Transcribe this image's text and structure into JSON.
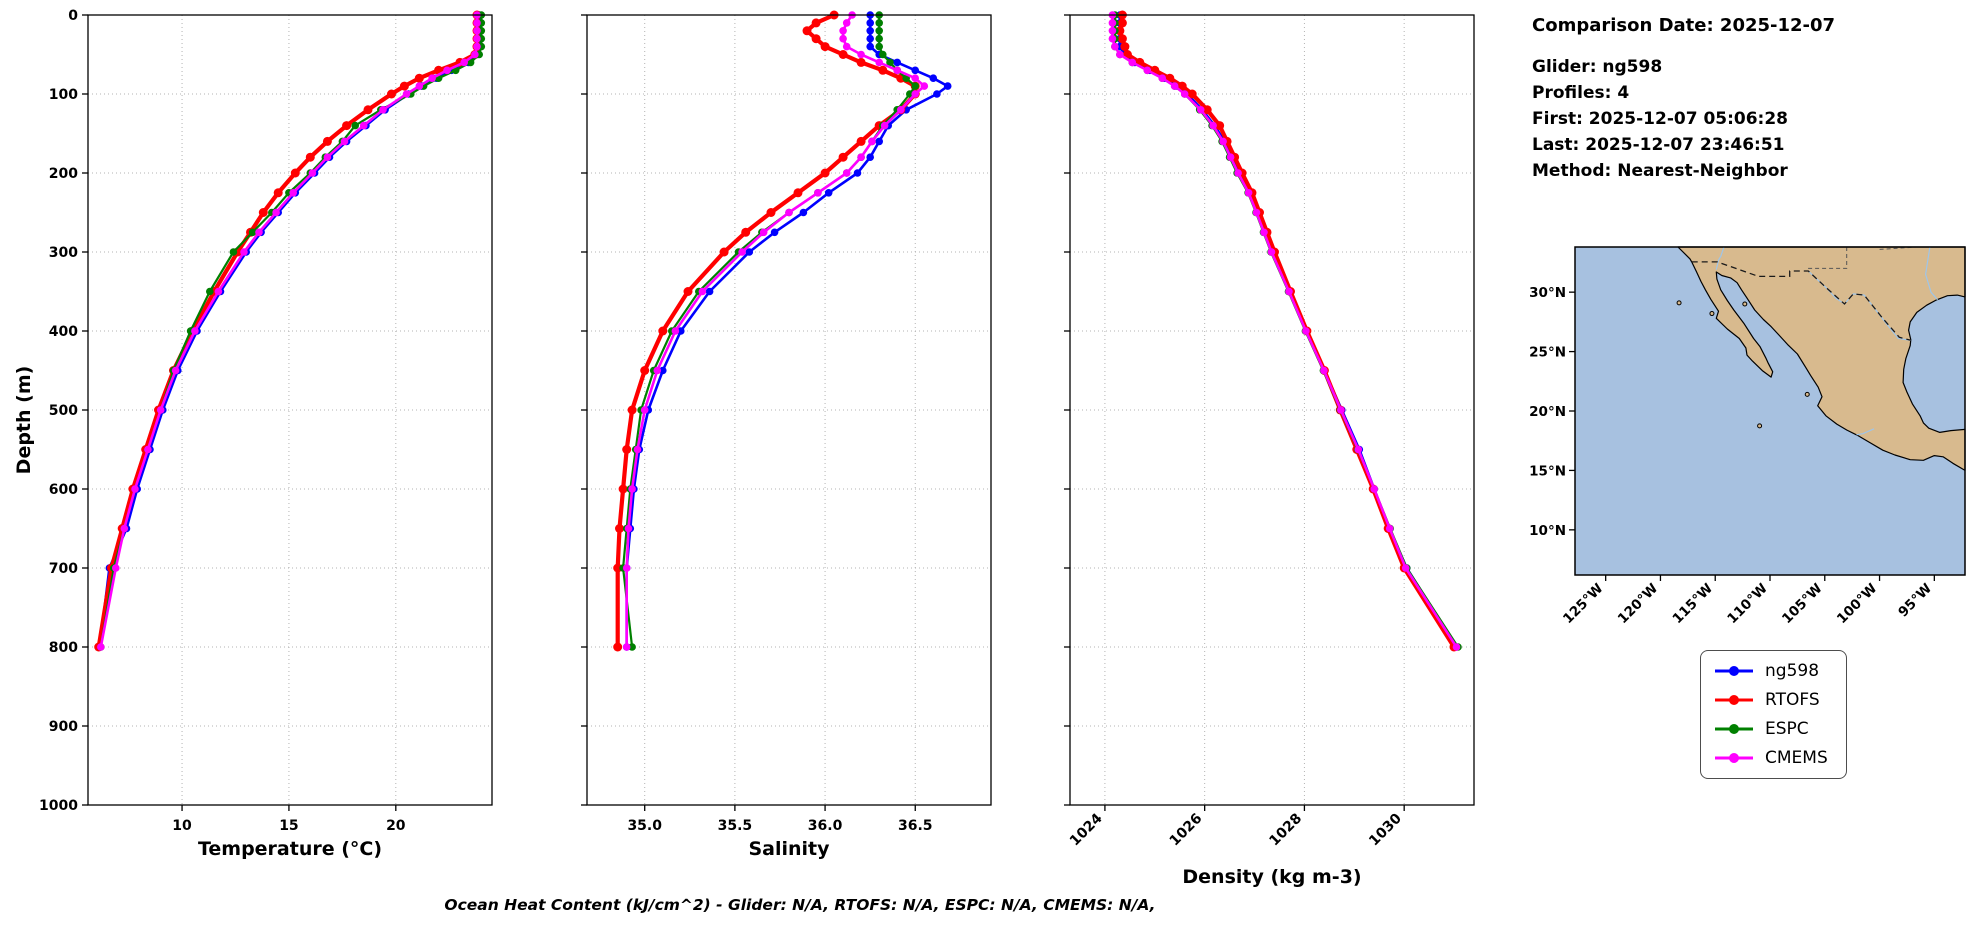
{
  "ylabel": "Depth (m)",
  "caption": "Ocean Heat Content (kJ/cm^2) - Glider: N/A,  RTOFS: N/A,  ESPC: N/A,  CMEMS: N/A,",
  "info_panel": {
    "comparison_date": "Comparison Date: 2025-12-07",
    "lines": [
      "Glider: ng598",
      "Profiles: 4",
      "First: 2025-12-07 05:06:28",
      "Last: 2025-12-07 23:46:51",
      "Method: Nearest-Neighbor"
    ]
  },
  "legend": {
    "items": [
      {
        "label": "ng598",
        "color": "#0000ff"
      },
      {
        "label": "RTOFS",
        "color": "#ff0000"
      },
      {
        "label": "ESPC",
        "color": "#008000"
      },
      {
        "label": "CMEMS",
        "color": "#ff00ff"
      }
    ]
  },
  "map": {
    "ocean_color": "#a7c1e0",
    "land_color": "#d8ba8e",
    "extent": {
      "lon": [
        -127.8,
        -92.2
      ],
      "lat": [
        6.2,
        33.8
      ]
    },
    "lat_ticks": [
      {
        "value": 30,
        "label": "30°N"
      },
      {
        "value": 25,
        "label": "25°N"
      },
      {
        "value": 20,
        "label": "20°N"
      },
      {
        "value": 15,
        "label": "15°N"
      },
      {
        "value": 10,
        "label": "10°N"
      }
    ],
    "lon_ticks": [
      {
        "value": -125,
        "label": "125°W"
      },
      {
        "value": -120,
        "label": "120°W"
      },
      {
        "value": -115,
        "label": "115°W"
      },
      {
        "value": -110,
        "label": "110°W"
      },
      {
        "value": -105,
        "label": "105°W"
      },
      {
        "value": -100,
        "label": "100°W"
      },
      {
        "value": -95,
        "label": "95°W"
      }
    ]
  },
  "chart_data": [
    {
      "id": "temperature",
      "type": "line",
      "xlabel": "Temperature (°C)",
      "ylabel": "Depth (m)",
      "xlim": [
        5.6,
        24.5
      ],
      "ylim": [
        0,
        1000
      ],
      "grid": true,
      "rotate_xticks": false,
      "ytick_labels": true,
      "xticks": [
        {
          "value": 10,
          "label": "10"
        },
        {
          "value": 15,
          "label": "15"
        },
        {
          "value": 20,
          "label": "20"
        }
      ],
      "yticks": [
        {
          "value": 0,
          "label": "0"
        },
        {
          "value": 100,
          "label": "100"
        },
        {
          "value": 200,
          "label": "200"
        },
        {
          "value": 300,
          "label": "300"
        },
        {
          "value": 400,
          "label": "400"
        },
        {
          "value": 500,
          "label": "500"
        },
        {
          "value": 600,
          "label": "600"
        },
        {
          "value": 700,
          "label": "700"
        },
        {
          "value": 800,
          "label": "800"
        },
        {
          "value": 900,
          "label": "900"
        },
        {
          "value": 1000,
          "label": "1000"
        }
      ],
      "depths": [
        0,
        10,
        20,
        30,
        40,
        50,
        60,
        70,
        80,
        90,
        100,
        120,
        140,
        160,
        180,
        200,
        225,
        250,
        275,
        300,
        350,
        400,
        450,
        500,
        550,
        600,
        650,
        700,
        800
      ],
      "series": [
        {
          "name": "ng598",
          "color": "#0000ff",
          "lw": 2.6,
          "ms": 3.8,
          "values": [
            23.9,
            23.9,
            23.9,
            23.9,
            23.9,
            23.8,
            23.4,
            22.6,
            21.9,
            21.2,
            20.6,
            19.5,
            18.6,
            17.7,
            16.9,
            16.2,
            15.3,
            14.5,
            13.7,
            13.0,
            11.8,
            10.7,
            9.8,
            9.1,
            8.5,
            7.9,
            7.4,
            6.6,
            6.15
          ]
        },
        {
          "name": "RTOFS",
          "color": "#ff0000",
          "lw": 4.2,
          "ms": 4.5,
          "values": [
            23.8,
            23.8,
            23.8,
            23.8,
            23.8,
            23.7,
            23.0,
            22.0,
            21.1,
            20.4,
            19.8,
            18.7,
            17.7,
            16.8,
            16.0,
            15.3,
            14.5,
            13.8,
            13.2,
            12.6,
            11.5,
            10.5,
            9.6,
            8.9,
            8.3,
            7.7,
            7.2,
            6.7,
            6.1
          ]
        },
        {
          "name": "ESPC",
          "color": "#008000",
          "lw": 2.2,
          "ms": 3.8,
          "values": [
            24.0,
            24.0,
            24.0,
            24.0,
            24.0,
            23.9,
            23.5,
            22.8,
            22.0,
            21.3,
            20.7,
            19.3,
            18.1,
            17.5,
            16.7,
            16.0,
            15.0,
            14.2,
            13.3,
            12.4,
            11.3,
            10.4,
            9.6,
            9.0,
            8.4,
            7.8,
            7.3,
            6.8,
            6.2
          ]
        },
        {
          "name": "CMEMS",
          "color": "#ff00ff",
          "lw": 2.6,
          "ms": 3.8,
          "values": [
            23.8,
            23.8,
            23.8,
            23.8,
            23.8,
            23.7,
            23.2,
            22.4,
            21.7,
            21.1,
            20.5,
            19.4,
            18.5,
            17.6,
            16.8,
            16.1,
            15.2,
            14.4,
            13.6,
            12.9,
            11.7,
            10.6,
            9.7,
            9.0,
            8.4,
            7.8,
            7.3,
            6.9,
            6.2
          ]
        }
      ]
    },
    {
      "id": "salinity",
      "type": "line",
      "xlabel": "Salinity",
      "ylabel": "Depth (m)",
      "xlim": [
        34.68,
        36.92
      ],
      "ylim": [
        0,
        1000
      ],
      "grid": true,
      "rotate_xticks": false,
      "ytick_labels": false,
      "xticks": [
        {
          "value": 35.0,
          "label": "35.0"
        },
        {
          "value": 35.5,
          "label": "35.5"
        },
        {
          "value": 36.0,
          "label": "36.0"
        },
        {
          "value": 36.5,
          "label": "36.5"
        }
      ],
      "yticks": [
        {
          "value": 0,
          "label": ""
        },
        {
          "value": 100,
          "label": ""
        },
        {
          "value": 200,
          "label": ""
        },
        {
          "value": 300,
          "label": ""
        },
        {
          "value": 400,
          "label": ""
        },
        {
          "value": 500,
          "label": ""
        },
        {
          "value": 600,
          "label": ""
        },
        {
          "value": 700,
          "label": ""
        },
        {
          "value": 800,
          "label": ""
        },
        {
          "value": 900,
          "label": ""
        },
        {
          "value": 1000,
          "label": ""
        }
      ],
      "depths": [
        0,
        10,
        20,
        30,
        40,
        50,
        60,
        70,
        80,
        90,
        100,
        120,
        140,
        160,
        180,
        200,
        225,
        250,
        275,
        300,
        350,
        400,
        450,
        500,
        550,
        600,
        650,
        700,
        800
      ],
      "series": [
        {
          "name": "ng598",
          "color": "#0000ff",
          "lw": 2.6,
          "ms": 3.8,
          "values": [
            36.25,
            36.25,
            36.25,
            36.25,
            36.25,
            36.3,
            36.4,
            36.5,
            36.6,
            36.68,
            36.62,
            36.45,
            36.35,
            36.3,
            36.25,
            36.18,
            36.02,
            35.88,
            35.72,
            35.58,
            35.36,
            35.2,
            35.1,
            35.02,
            34.97,
            34.94,
            34.92,
            34.9,
            34.9
          ]
        },
        {
          "name": "RTOFS",
          "color": "#ff0000",
          "lw": 4.2,
          "ms": 4.5,
          "values": [
            36.05,
            35.95,
            35.9,
            35.95,
            36.0,
            36.1,
            36.2,
            36.32,
            36.42,
            36.5,
            36.5,
            36.42,
            36.3,
            36.2,
            36.1,
            36.0,
            35.85,
            35.7,
            35.56,
            35.44,
            35.24,
            35.1,
            35.0,
            34.93,
            34.9,
            34.88,
            34.86,
            34.85,
            34.85
          ]
        },
        {
          "name": "ESPC",
          "color": "#008000",
          "lw": 2.2,
          "ms": 3.8,
          "values": [
            36.3,
            36.3,
            36.3,
            36.3,
            36.3,
            36.32,
            36.36,
            36.4,
            36.45,
            36.5,
            36.47,
            36.4,
            36.32,
            36.26,
            36.2,
            36.12,
            35.96,
            35.8,
            35.65,
            35.52,
            35.3,
            35.15,
            35.05,
            34.98,
            34.95,
            34.92,
            34.9,
            34.88,
            34.93
          ]
        },
        {
          "name": "CMEMS",
          "color": "#ff00ff",
          "lw": 2.6,
          "ms": 3.8,
          "values": [
            36.15,
            36.12,
            36.1,
            36.1,
            36.12,
            36.2,
            36.3,
            36.4,
            36.5,
            36.55,
            36.5,
            36.42,
            36.33,
            36.26,
            36.2,
            36.12,
            35.96,
            35.8,
            35.66,
            35.54,
            35.32,
            35.17,
            35.07,
            35.0,
            34.96,
            34.93,
            34.91,
            34.9,
            34.9
          ]
        }
      ]
    },
    {
      "id": "density",
      "type": "line",
      "xlabel": "Density (kg m-3)",
      "ylabel": "Depth (m)",
      "xlim": [
        1023.3,
        1031.4
      ],
      "ylim": [
        0,
        1000
      ],
      "grid": true,
      "rotate_xticks": true,
      "ytick_labels": false,
      "xticks": [
        {
          "value": 1024,
          "label": "1024"
        },
        {
          "value": 1026,
          "label": "1026"
        },
        {
          "value": 1028,
          "label": "1028"
        },
        {
          "value": 1030,
          "label": "1030"
        }
      ],
      "yticks": [
        {
          "value": 0,
          "label": ""
        },
        {
          "value": 100,
          "label": ""
        },
        {
          "value": 200,
          "label": ""
        },
        {
          "value": 300,
          "label": ""
        },
        {
          "value": 400,
          "label": ""
        },
        {
          "value": 500,
          "label": ""
        },
        {
          "value": 600,
          "label": ""
        },
        {
          "value": 700,
          "label": ""
        },
        {
          "value": 800,
          "label": ""
        },
        {
          "value": 900,
          "label": ""
        },
        {
          "value": 1000,
          "label": ""
        }
      ],
      "depths": [
        0,
        10,
        20,
        30,
        40,
        50,
        60,
        70,
        80,
        90,
        100,
        120,
        140,
        160,
        180,
        200,
        225,
        250,
        275,
        300,
        350,
        400,
        450,
        500,
        550,
        600,
        650,
        700,
        800
      ],
      "series": [
        {
          "name": "ng598",
          "color": "#0000ff",
          "lw": 2.6,
          "ms": 3.8,
          "values": [
            1024.3,
            1024.3,
            1024.3,
            1024.3,
            1024.3,
            1024.4,
            1024.6,
            1024.9,
            1025.2,
            1025.45,
            1025.65,
            1025.95,
            1026.2,
            1026.4,
            1026.55,
            1026.7,
            1026.9,
            1027.05,
            1027.2,
            1027.35,
            1027.7,
            1028.05,
            1028.4,
            1028.75,
            1029.1,
            1029.4,
            1029.7,
            1030.05,
            1031.05
          ]
        },
        {
          "name": "RTOFS",
          "color": "#ff0000",
          "lw": 4.2,
          "ms": 4.5,
          "values": [
            1024.35,
            1024.35,
            1024.3,
            1024.35,
            1024.4,
            1024.45,
            1024.7,
            1025.0,
            1025.3,
            1025.55,
            1025.75,
            1026.05,
            1026.3,
            1026.45,
            1026.6,
            1026.75,
            1026.95,
            1027.1,
            1027.25,
            1027.4,
            1027.72,
            1028.05,
            1028.4,
            1028.72,
            1029.05,
            1029.38,
            1029.68,
            1030.0,
            1031.0
          ]
        },
        {
          "name": "ESPC",
          "color": "#008000",
          "lw": 2.2,
          "ms": 3.8,
          "values": [
            1024.2,
            1024.2,
            1024.2,
            1024.2,
            1024.2,
            1024.3,
            1024.55,
            1024.85,
            1025.15,
            1025.4,
            1025.6,
            1025.9,
            1026.15,
            1026.35,
            1026.5,
            1026.65,
            1026.87,
            1027.03,
            1027.18,
            1027.33,
            1027.68,
            1028.02,
            1028.38,
            1028.72,
            1029.07,
            1029.4,
            1029.72,
            1030.05,
            1031.08
          ]
        },
        {
          "name": "CMEMS",
          "color": "#ff00ff",
          "lw": 2.6,
          "ms": 3.8,
          "values": [
            1024.15,
            1024.15,
            1024.15,
            1024.15,
            1024.2,
            1024.3,
            1024.55,
            1024.85,
            1025.15,
            1025.4,
            1025.6,
            1025.92,
            1026.17,
            1026.37,
            1026.52,
            1026.67,
            1026.88,
            1027.04,
            1027.19,
            1027.34,
            1027.69,
            1028.03,
            1028.39,
            1028.73,
            1029.08,
            1029.4,
            1029.71,
            1030.03,
            1031.05
          ]
        }
      ]
    }
  ]
}
